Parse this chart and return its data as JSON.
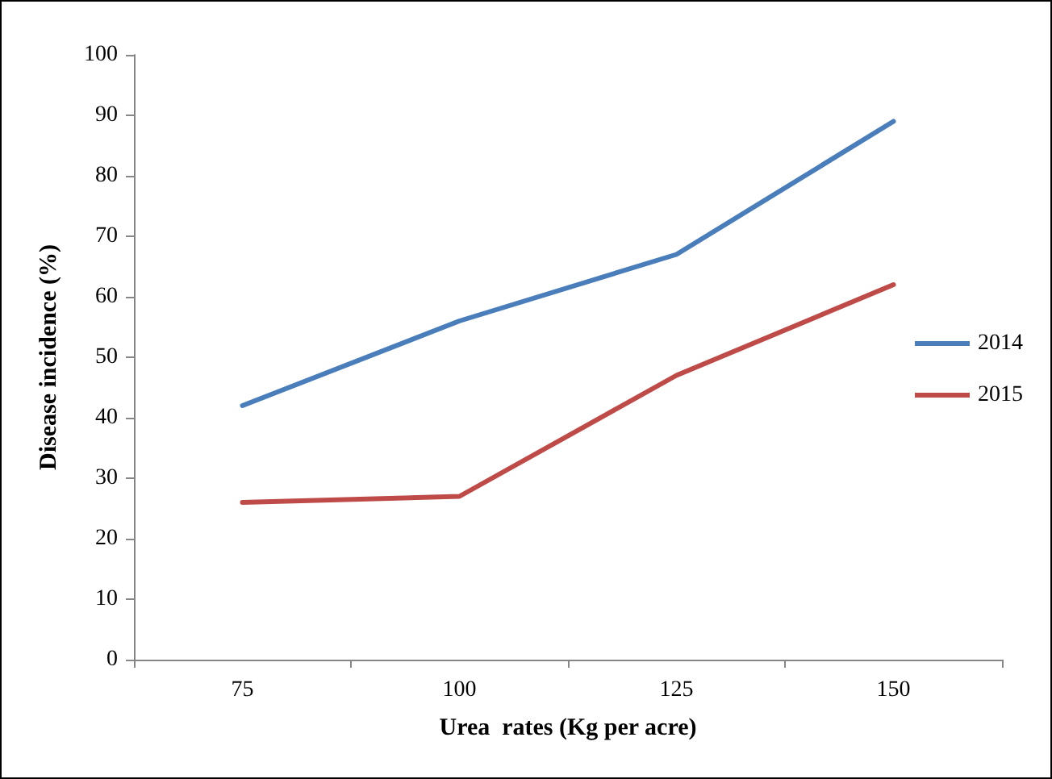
{
  "chart_data": {
    "type": "line",
    "xlabel": "Urea  rates (Kg per acre)",
    "ylabel": "Disease incidence (%)",
    "categories": [
      "75",
      "100",
      "125",
      "150"
    ],
    "series": [
      {
        "name": "2014",
        "color": "#4a7ebb",
        "values": [
          42,
          56,
          67,
          89
        ]
      },
      {
        "name": "2015",
        "color": "#be4b48",
        "values": [
          26,
          27,
          47,
          62
        ]
      }
    ],
    "ylim": [
      0,
      100
    ],
    "yticks": [
      0,
      10,
      20,
      30,
      40,
      50,
      60,
      70,
      80,
      90,
      100
    ],
    "grid": false,
    "legend": "right",
    "marker": "none",
    "line_style": "solid"
  }
}
